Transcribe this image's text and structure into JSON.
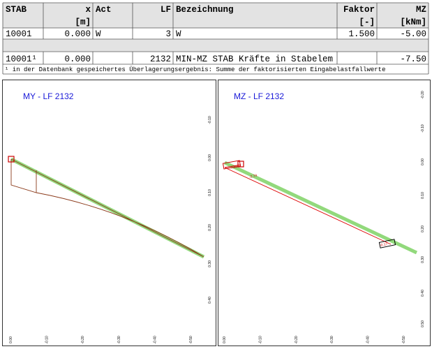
{
  "table": {
    "header": [
      {
        "label": "STAB"
      },
      {
        "label": "x",
        "unit": "[m]"
      },
      {
        "label": "Act"
      },
      {
        "label": "LF"
      },
      {
        "label": "Bezeichnung"
      },
      {
        "label": "Faktor",
        "unit": "[-]"
      },
      {
        "label": "MZ",
        "unit": "[kNm]"
      }
    ],
    "rows": [
      {
        "stab": "10001",
        "x": "0.000",
        "act": "W",
        "lf": "3",
        "bezeichnung": "W",
        "faktor": "1.500",
        "mz": "-5.00"
      },
      {
        "stab": "10001¹",
        "x": "0.000",
        "lf": "2132",
        "bezeichnung": "MIN-MZ STAB Kräfte in Stabelem",
        "mz": "-7.50"
      }
    ],
    "footnote": "¹  in der Datenbank gespeichertes Überlagerungsergebnis: Summe der faktorisierten Eingabelastfallwerte"
  },
  "panels": [
    {
      "title": "MY - LF 2132",
      "x_ticks": [
        "0.00",
        "-0.10",
        "-0.20",
        "-0.30",
        "-0.40",
        "-0.50"
      ],
      "y_ticks": [
        "-0.10",
        "0.00",
        "0.10",
        "0.20",
        "0.30",
        "0.40"
      ]
    },
    {
      "title": "MZ - LF 2132",
      "x_ticks": [
        "0.00",
        "-0.10",
        "-0.20",
        "-0.30",
        "-0.40",
        "-0.50"
      ],
      "y_ticks": [
        "-0.20",
        "-0.10",
        "0.00",
        "0.10",
        "0.20",
        "0.30",
        "0.40",
        "0.50"
      ],
      "annotations": [
        "-7.50",
        "-2.74",
        "-0.17"
      ]
    }
  ]
}
